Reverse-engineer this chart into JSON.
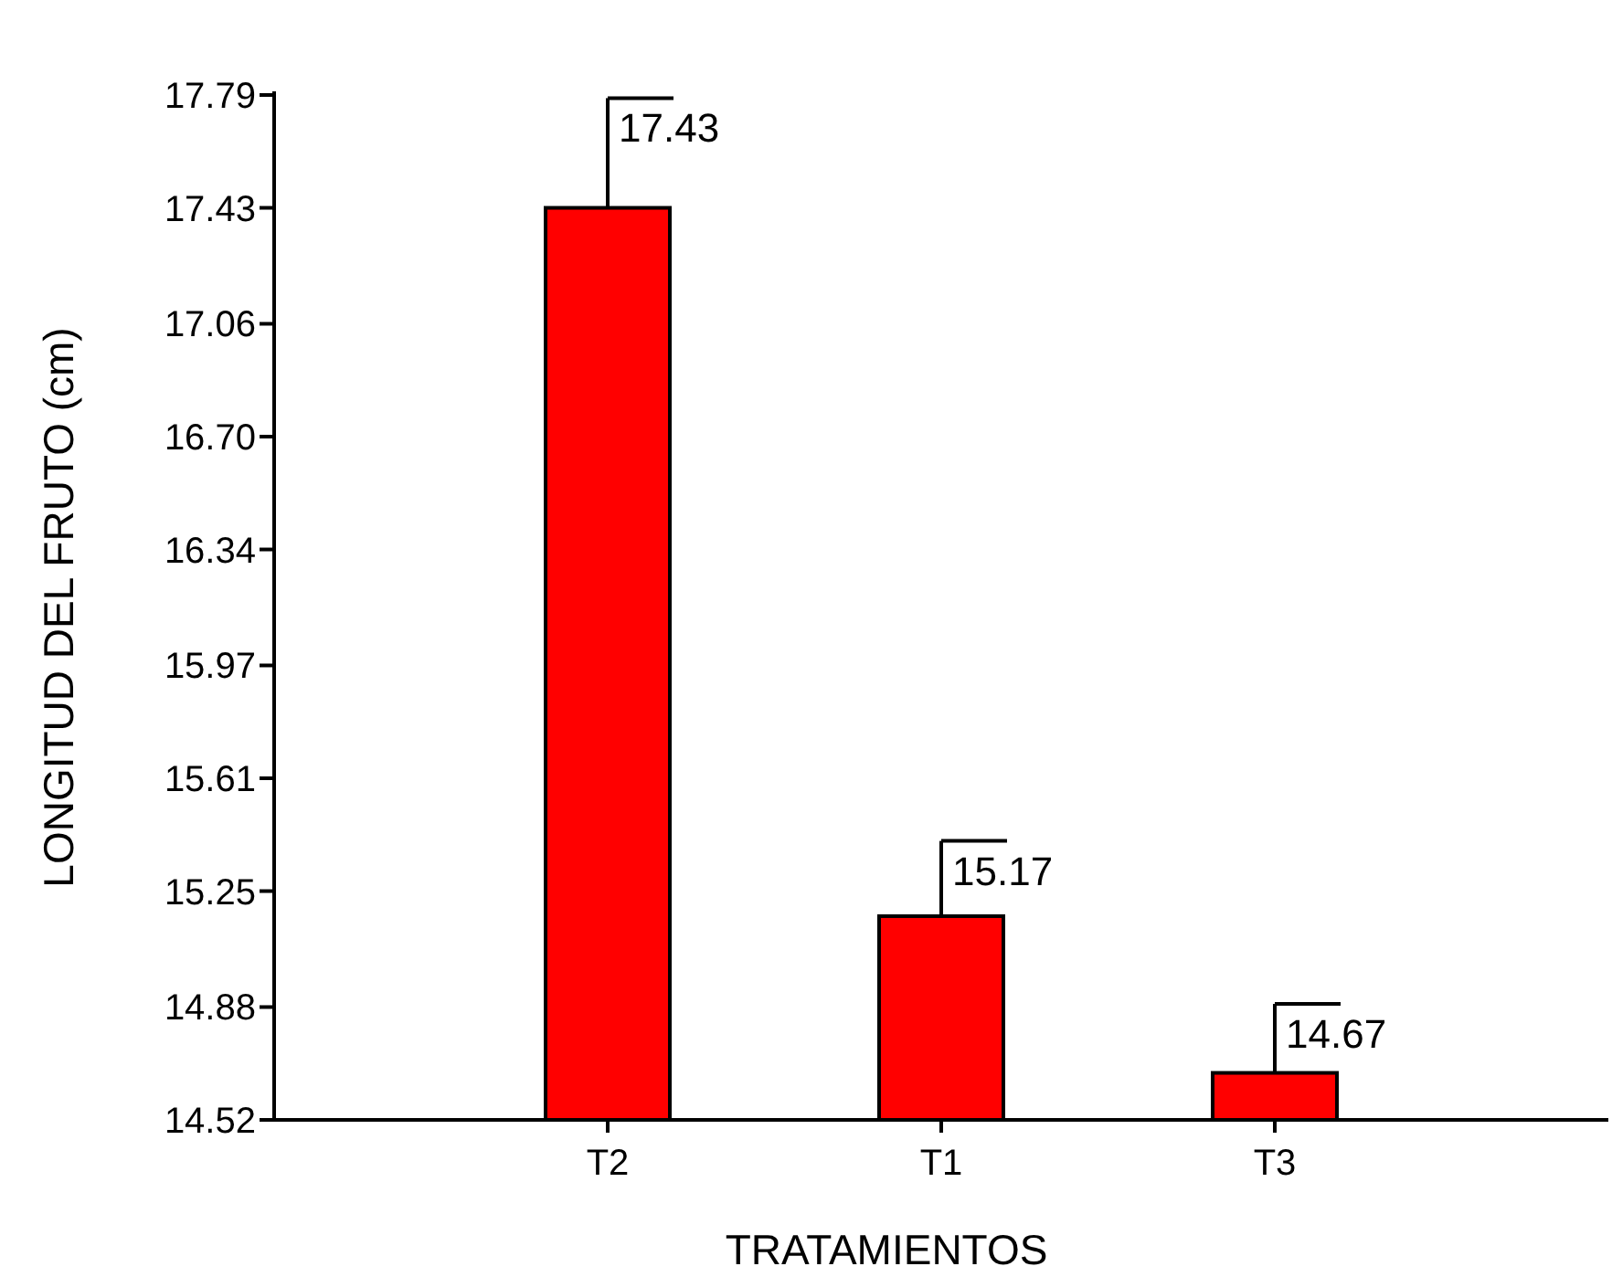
{
  "chart_data": {
    "type": "bar",
    "xlabel": "TRATAMIENTOS",
    "ylabel": "LONGITUD DEL FRUTO (cm)",
    "categories": [
      "T2",
      "T1",
      "T3"
    ],
    "values": [
      17.43,
      15.17,
      14.67
    ],
    "errors": [
      [
        17.43,
        17.78
      ],
      [
        15.17,
        15.41
      ],
      [
        14.67,
        14.89
      ]
    ],
    "color": "#ff0000",
    "data_labels": true,
    "ylim": [
      14.52,
      17.79
    ],
    "yticks": [
      {
        "value": 14.52,
        "label": "14.52"
      },
      {
        "value": 14.88,
        "label": "14.88"
      },
      {
        "value": 15.25,
        "label": "15.25"
      },
      {
        "value": 15.61,
        "label": "15.61"
      },
      {
        "value": 15.97,
        "label": "15.97"
      },
      {
        "value": 16.34,
        "label": "16.34"
      },
      {
        "value": 16.7,
        "label": "16.70"
      },
      {
        "value": 17.06,
        "label": "17.06"
      },
      {
        "value": 17.43,
        "label": "17.43"
      },
      {
        "value": 17.79,
        "label": "17.79"
      }
    ]
  }
}
